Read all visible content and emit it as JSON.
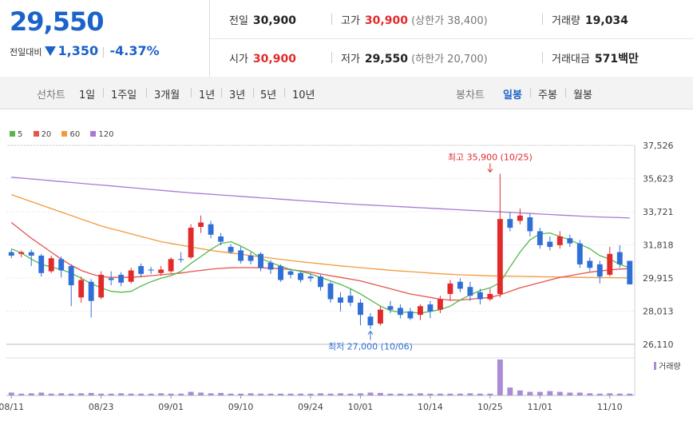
{
  "quote": {
    "price": "29,550",
    "change_label": "전일대비",
    "change_value": "1,350",
    "change_pct": "-4.37%",
    "prev_close_label": "전일",
    "prev_close": "30,900",
    "high_label": "고가",
    "high": "30,900",
    "upper_limit": "(상한가 38,400)",
    "volume_label": "거래량",
    "volume": "19,034",
    "open_label": "시가",
    "open": "30,900",
    "low_label": "저가",
    "low": "29,550",
    "lower_limit": "(하한가 20,700)",
    "amount_label": "거래대금",
    "amount": "571",
    "amount_unit": "백만"
  },
  "tabs": {
    "line_chart": "선차트",
    "periods": [
      "1일",
      "1주일",
      "3개월",
      "1년",
      "3년",
      "5년",
      "10년"
    ],
    "candle_chart": "봉차트",
    "candle_periods": [
      "일봉",
      "주봉",
      "월봉"
    ],
    "active_candle": "일봉"
  },
  "colors": {
    "up": "#e12b2b",
    "down": "#2f6fd6",
    "ma5": "#55b947",
    "ma20": "#e8524f",
    "ma60": "#f39a3d",
    "ma120": "#a77ad6",
    "volume": "#a98bd6"
  },
  "chart_data": {
    "type": "candlestick",
    "legend": [
      {
        "name": "5",
        "color": "#55b947"
      },
      {
        "name": "20",
        "color": "#e8524f"
      },
      {
        "name": "60",
        "color": "#f39a3d"
      },
      {
        "name": "120",
        "color": "#a77ad6"
      }
    ],
    "y_ticks": [
      "37,526",
      "35,623",
      "33,721",
      "31,818",
      "29,915",
      "28,013",
      "26,110"
    ],
    "ylim": [
      26110,
      37526
    ],
    "x_tick_labels": [
      "08/11",
      "08/23",
      "09/01",
      "09/10",
      "09/24",
      "10/01",
      "10/14",
      "10/25",
      "11/01",
      "11/10"
    ],
    "x_tick_index": [
      0,
      9,
      16,
      23,
      30,
      35,
      42,
      48,
      53,
      60
    ],
    "volume_label": "거래량",
    "annotations": {
      "high_text": "최고 35,900 (10/25)",
      "low_text": "최저 27,000 (10/06)",
      "high_index": 48,
      "low_index": 36,
      "high_value": 35900,
      "low_value": 27000
    },
    "candles": [
      {
        "o": 31400,
        "c": 31200,
        "h": 31550,
        "l": 31050
      },
      {
        "o": 31300,
        "c": 31400,
        "h": 31500,
        "l": 31100
      },
      {
        "o": 31400,
        "c": 31200,
        "h": 31550,
        "l": 30600
      },
      {
        "o": 31200,
        "c": 30200,
        "h": 31300,
        "l": 30000
      },
      {
        "o": 30300,
        "c": 31050,
        "h": 31200,
        "l": 30200
      },
      {
        "o": 31000,
        "c": 30350,
        "h": 31150,
        "l": 29950
      },
      {
        "o": 30600,
        "c": 29500,
        "h": 30700,
        "l": 28300
      },
      {
        "o": 28800,
        "c": 29800,
        "h": 30000,
        "l": 28500
      },
      {
        "o": 29700,
        "c": 28600,
        "h": 29850,
        "l": 27650
      },
      {
        "o": 28800,
        "c": 30100,
        "h": 30300,
        "l": 28700
      },
      {
        "o": 29900,
        "c": 29800,
        "h": 30300,
        "l": 29500
      },
      {
        "o": 30100,
        "c": 29650,
        "h": 30250,
        "l": 29450
      },
      {
        "o": 29700,
        "c": 30350,
        "h": 30500,
        "l": 29600
      },
      {
        "o": 30600,
        "c": 30150,
        "h": 30750,
        "l": 29950
      },
      {
        "o": 30400,
        "c": 30350,
        "h": 30550,
        "l": 30150
      },
      {
        "o": 30200,
        "c": 30400,
        "h": 30600,
        "l": 30050
      },
      {
        "o": 30300,
        "c": 31000,
        "h": 31100,
        "l": 30200
      },
      {
        "o": 31000,
        "c": 30950,
        "h": 31400,
        "l": 30800
      },
      {
        "o": 31100,
        "c": 32800,
        "h": 33000,
        "l": 31000
      },
      {
        "o": 32850,
        "c": 33100,
        "h": 33500,
        "l": 32500
      },
      {
        "o": 33000,
        "c": 32400,
        "h": 33200,
        "l": 32200
      },
      {
        "o": 32300,
        "c": 32000,
        "h": 32500,
        "l": 31800
      },
      {
        "o": 31700,
        "c": 31400,
        "h": 31850,
        "l": 31300
      },
      {
        "o": 31500,
        "c": 30900,
        "h": 31700,
        "l": 30750
      },
      {
        "o": 31200,
        "c": 30900,
        "h": 31400,
        "l": 30700
      },
      {
        "o": 31300,
        "c": 30500,
        "h": 31400,
        "l": 30300
      },
      {
        "o": 30800,
        "c": 30400,
        "h": 30950,
        "l": 30150
      },
      {
        "o": 30600,
        "c": 29800,
        "h": 30700,
        "l": 29700
      },
      {
        "o": 30300,
        "c": 30100,
        "h": 30450,
        "l": 29900
      },
      {
        "o": 30200,
        "c": 29800,
        "h": 30350,
        "l": 29650
      },
      {
        "o": 30000,
        "c": 29900,
        "h": 30150,
        "l": 29700
      },
      {
        "o": 30000,
        "c": 29400,
        "h": 30100,
        "l": 29200
      },
      {
        "o": 29600,
        "c": 28700,
        "h": 29700,
        "l": 28500
      },
      {
        "o": 28800,
        "c": 28500,
        "h": 29100,
        "l": 28000
      },
      {
        "o": 28900,
        "c": 28500,
        "h": 29300,
        "l": 28300
      },
      {
        "o": 28500,
        "c": 27800,
        "h": 28700,
        "l": 27200
      },
      {
        "o": 27700,
        "c": 27200,
        "h": 27900,
        "l": 27000
      },
      {
        "o": 27300,
        "c": 28100,
        "h": 28300,
        "l": 27200
      },
      {
        "o": 28300,
        "c": 28100,
        "h": 28600,
        "l": 27900
      },
      {
        "o": 28200,
        "c": 27800,
        "h": 28400,
        "l": 27600
      },
      {
        "o": 28000,
        "c": 27600,
        "h": 28200,
        "l": 27500
      },
      {
        "o": 27800,
        "c": 28300,
        "h": 28400,
        "l": 27500
      },
      {
        "o": 28400,
        "c": 28000,
        "h": 28600,
        "l": 27600
      },
      {
        "o": 28100,
        "c": 28700,
        "h": 28900,
        "l": 27900
      },
      {
        "o": 29000,
        "c": 29600,
        "h": 29800,
        "l": 28600
      },
      {
        "o": 29700,
        "c": 29300,
        "h": 29900,
        "l": 29100
      },
      {
        "o": 29400,
        "c": 28900,
        "h": 29700,
        "l": 28600
      },
      {
        "o": 29100,
        "c": 28700,
        "h": 29300,
        "l": 28400
      },
      {
        "o": 28700,
        "c": 29000,
        "h": 29300,
        "l": 28600
      },
      {
        "o": 29000,
        "c": 33300,
        "h": 35900,
        "l": 28800
      },
      {
        "o": 33300,
        "c": 32800,
        "h": 33700,
        "l": 32600
      },
      {
        "o": 33200,
        "c": 33500,
        "h": 33900,
        "l": 33000
      },
      {
        "o": 33400,
        "c": 32600,
        "h": 33600,
        "l": 32300
      },
      {
        "o": 32600,
        "c": 31800,
        "h": 32800,
        "l": 31600
      },
      {
        "o": 32000,
        "c": 31700,
        "h": 32300,
        "l": 31500
      },
      {
        "o": 31800,
        "c": 32300,
        "h": 32600,
        "l": 31600
      },
      {
        "o": 32200,
        "c": 31900,
        "h": 32400,
        "l": 31700
      },
      {
        "o": 31900,
        "c": 30700,
        "h": 32100,
        "l": 30500
      },
      {
        "o": 30900,
        "c": 30500,
        "h": 31100,
        "l": 30300
      },
      {
        "o": 30700,
        "c": 30000,
        "h": 30900,
        "l": 29600
      },
      {
        "o": 30100,
        "c": 31300,
        "h": 31700,
        "l": 30000
      },
      {
        "o": 31400,
        "c": 30700,
        "h": 31800,
        "l": 30500
      },
      {
        "o": 30900,
        "c": 29550,
        "h": 30900,
        "l": 29550
      }
    ],
    "volumes": [
      0.08,
      0.05,
      0.06,
      0.08,
      0.05,
      0.06,
      0.05,
      0.06,
      0.07,
      0.05,
      0.05,
      0.06,
      0.05,
      0.05,
      0.05,
      0.06,
      0.05,
      0.05,
      0.1,
      0.08,
      0.06,
      0.07,
      0.05,
      0.05,
      0.06,
      0.05,
      0.05,
      0.05,
      0.05,
      0.05,
      0.05,
      0.06,
      0.05,
      0.06,
      0.05,
      0.06,
      0.08,
      0.07,
      0.05,
      0.05,
      0.05,
      0.06,
      0.05,
      0.05,
      0.05,
      0.05,
      0.06,
      0.05,
      0.05,
      1.0,
      0.22,
      0.14,
      0.1,
      0.1,
      0.12,
      0.1,
      0.08,
      0.08,
      0.06,
      0.05,
      0.06,
      0.05,
      0.05
    ],
    "ma5": [
      31600,
      31350,
      31000,
      30700,
      30550,
      30400,
      30200,
      29900,
      29600,
      29350,
      29150,
      29100,
      29150,
      29450,
      29700,
      29900,
      30050,
      30300,
      30750,
      31150,
      31550,
      31900,
      32000,
      31750,
      31450,
      31050,
      30800,
      30600,
      30400,
      30300,
      30150,
      29950,
      29750,
      29550,
      29300,
      29000,
      28650,
      28300,
      28050,
      27950,
      27950,
      27900,
      28000,
      28100,
      28300,
      28650,
      28950,
      29200,
      29350,
      29650,
      30550,
      31400,
      32100,
      32450,
      32500,
      32300,
      32100,
      31850,
      31600,
      31200,
      31000,
      30700,
      30500
    ],
    "ma20": [
      33100,
      32650,
      32200,
      31800,
      31400,
      31000,
      30650,
      30350,
      30150,
      30000,
      29950,
      29950,
      29950,
      30000,
      30050,
      30100,
      30150,
      30200,
      30280,
      30350,
      30420,
      30470,
      30500,
      30510,
      30510,
      30500,
      30480,
      30450,
      30400,
      30330,
      30250,
      30150,
      30050,
      29950,
      29850,
      29750,
      29600,
      29450,
      29300,
      29150,
      29000,
      28900,
      28800,
      28700,
      28650,
      28650,
      28700,
      28750,
      28800,
      28950,
      29150,
      29350,
      29500,
      29650,
      29800,
      29950,
      30050,
      30150,
      30250,
      30320,
      30380,
      30430,
      30450
    ],
    "ma60": [
      34700,
      34500,
      34300,
      34100,
      33900,
      33700,
      33500,
      33300,
      33100,
      32900,
      32750,
      32600,
      32450,
      32300,
      32150,
      32000,
      31900,
      31800,
      31700,
      31600,
      31500,
      31420,
      31350,
      31280,
      31200,
      31130,
      31060,
      30990,
      30920,
      30850,
      30790,
      30730,
      30670,
      30610,
      30560,
      30510,
      30460,
      30410,
      30360,
      30320,
      30280,
      30240,
      30200,
      30160,
      30130,
      30100,
      30080,
      30060,
      30040,
      30030,
      30020,
      30010,
      30000,
      29990,
      29980,
      29970,
      29960,
      29950,
      29945,
      29940,
      29935,
      29930,
      29925
    ],
    "ma120": [
      35700,
      35650,
      35600,
      35550,
      35500,
      35450,
      35400,
      35350,
      35300,
      35250,
      35200,
      35150,
      35100,
      35050,
      35000,
      34950,
      34900,
      34850,
      34800,
      34760,
      34720,
      34680,
      34640,
      34600,
      34560,
      34520,
      34480,
      34440,
      34400,
      34360,
      34320,
      34280,
      34240,
      34200,
      34160,
      34130,
      34100,
      34070,
      34040,
      34010,
      33980,
      33950,
      33920,
      33890,
      33860,
      33830,
      33800,
      33770,
      33740,
      33710,
      33680,
      33650,
      33620,
      33590,
      33560,
      33530,
      33500,
      33470,
      33440,
      33420,
      33400,
      33380,
      33360
    ]
  }
}
